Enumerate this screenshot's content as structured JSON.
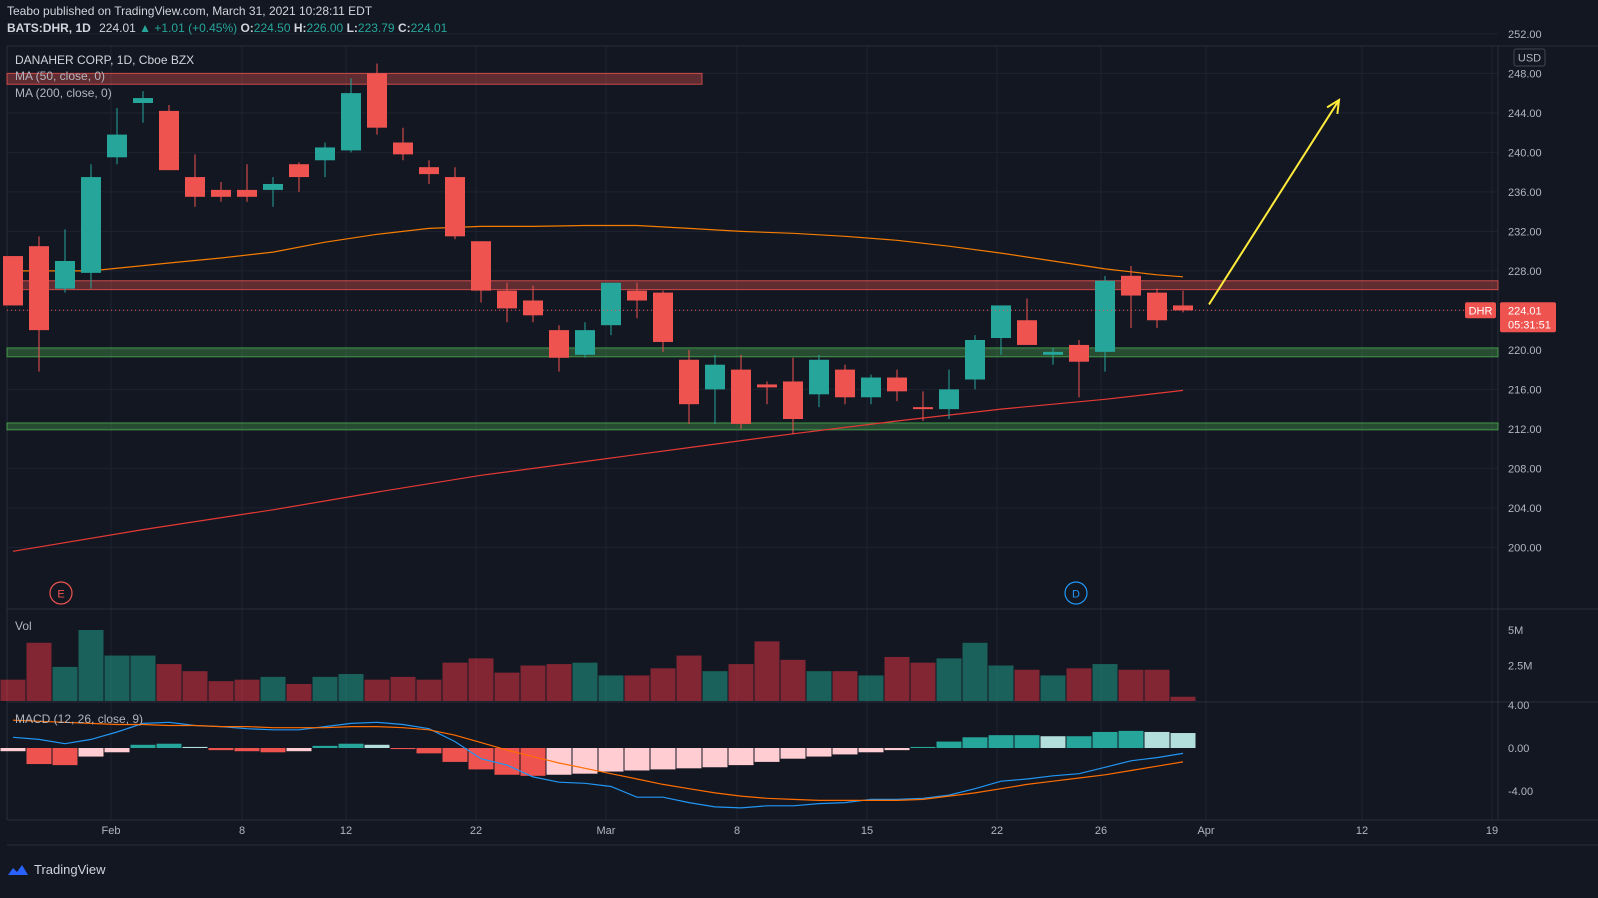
{
  "header": {
    "publisher": "Teabo published on TradingView.com, March 31, 2021 10:28:11 EDT",
    "symbol": "BATS:DHR, 1D",
    "last": "224.01",
    "change": "▲ +1.01 (+0.45%)",
    "o_label": "O:",
    "o": "224.50",
    "h_label": "H:",
    "h": "226.00",
    "l_label": "L:",
    "l": "223.79",
    "c_label": "C:",
    "c": "224.01"
  },
  "legend": {
    "title": "DANAHER CORP, 1D, Cboe BZX",
    "ma50": "MA (50, close, 0)",
    "ma200": "MA (200, close, 0)",
    "vol": "Vol",
    "macd": "MACD (12, 26, close, 9)"
  },
  "axis": {
    "currency": "USD",
    "price_ticks": [
      "252.00",
      "248.00",
      "244.00",
      "240.00",
      "236.00",
      "232.00",
      "228.00",
      "224.00",
      "220.00",
      "216.00",
      "212.00",
      "208.00",
      "204.00",
      "200.00"
    ],
    "volume_ticks": [
      "5M",
      "2.5M"
    ],
    "macd_ticks": [
      "4.00",
      "0.00",
      "-4.00"
    ],
    "date_ticks": [
      "Feb",
      "8",
      "12",
      "22",
      "Mar",
      "8",
      "15",
      "22",
      "26",
      "Apr",
      "12",
      "19"
    ]
  },
  "price_label": {
    "symbol": "DHR",
    "price": "224.01",
    "countdown": "05:31:51"
  },
  "events": {
    "earnings": "E",
    "dividend": "D"
  },
  "footer": {
    "brand": "TradingView"
  },
  "colors": {
    "up": "#26a69a",
    "down": "#ef5350",
    "ma50": "#f57c00",
    "ma200": "#e53935",
    "arrow": "#ffeb3b",
    "macd": "#2196f3",
    "signal": "#ff6d00"
  },
  "chart_data": {
    "type": "candlestick",
    "price_range": [
      198.0,
      253.0
    ],
    "candles": [
      {
        "o": 229.5,
        "h": 229.5,
        "l": 224.5,
        "c": 224.5
      },
      {
        "o": 230.5,
        "h": 231.5,
        "l": 217.8,
        "c": 222.0
      },
      {
        "o": 226.2,
        "h": 232.2,
        "l": 225.8,
        "c": 229.0
      },
      {
        "o": 227.8,
        "h": 238.8,
        "l": 226.2,
        "c": 237.5
      },
      {
        "o": 239.5,
        "h": 244.5,
        "l": 238.8,
        "c": 241.8
      },
      {
        "o": 245.0,
        "h": 246.2,
        "l": 243.0,
        "c": 245.5
      },
      {
        "o": 244.2,
        "h": 244.8,
        "l": 238.2,
        "c": 238.2
      },
      {
        "o": 237.5,
        "h": 239.8,
        "l": 234.5,
        "c": 235.5
      },
      {
        "o": 236.2,
        "h": 237.0,
        "l": 235.0,
        "c": 235.5
      },
      {
        "o": 236.2,
        "h": 238.8,
        "l": 235.0,
        "c": 235.5
      },
      {
        "o": 236.2,
        "h": 237.5,
        "l": 234.5,
        "c": 236.8
      },
      {
        "o": 238.8,
        "h": 239.0,
        "l": 236.0,
        "c": 237.5
      },
      {
        "o": 239.2,
        "h": 241.0,
        "l": 237.5,
        "c": 240.5
      },
      {
        "o": 240.2,
        "h": 247.5,
        "l": 240.0,
        "c": 246.0
      },
      {
        "o": 248.0,
        "h": 249.0,
        "l": 241.8,
        "c": 242.5
      },
      {
        "o": 241.0,
        "h": 242.5,
        "l": 239.2,
        "c": 239.8
      },
      {
        "o": 238.5,
        "h": 239.2,
        "l": 236.8,
        "c": 237.8
      },
      {
        "o": 237.5,
        "h": 238.5,
        "l": 231.2,
        "c": 231.5
      },
      {
        "o": 231.0,
        "h": 231.0,
        "l": 224.8,
        "c": 226.0
      },
      {
        "o": 226.0,
        "h": 226.8,
        "l": 222.8,
        "c": 224.2
      },
      {
        "o": 225.0,
        "h": 226.5,
        "l": 222.8,
        "c": 223.5
      },
      {
        "o": 222.0,
        "h": 222.5,
        "l": 217.8,
        "c": 219.2
      },
      {
        "o": 219.5,
        "h": 222.8,
        "l": 219.2,
        "c": 222.0
      },
      {
        "o": 222.5,
        "h": 226.8,
        "l": 221.5,
        "c": 226.8
      },
      {
        "o": 226.0,
        "h": 226.8,
        "l": 223.2,
        "c": 225.0
      },
      {
        "o": 225.8,
        "h": 226.0,
        "l": 219.8,
        "c": 220.8
      },
      {
        "o": 219.0,
        "h": 220.0,
        "l": 212.5,
        "c": 214.5
      },
      {
        "o": 216.0,
        "h": 219.5,
        "l": 212.5,
        "c": 218.5
      },
      {
        "o": 218.0,
        "h": 219.5,
        "l": 212.0,
        "c": 212.5
      },
      {
        "o": 216.5,
        "h": 216.8,
        "l": 214.5,
        "c": 216.2
      },
      {
        "o": 216.8,
        "h": 219.2,
        "l": 211.5,
        "c": 213.0
      },
      {
        "o": 215.5,
        "h": 219.5,
        "l": 214.2,
        "c": 219.0
      },
      {
        "o": 218.0,
        "h": 218.5,
        "l": 214.5,
        "c": 215.2
      },
      {
        "o": 215.2,
        "h": 217.5,
        "l": 214.5,
        "c": 217.2
      },
      {
        "o": 217.2,
        "h": 218.0,
        "l": 214.8,
        "c": 215.8
      },
      {
        "o": 214.2,
        "h": 215.8,
        "l": 212.8,
        "c": 214.0
      },
      {
        "o": 214.0,
        "h": 218.0,
        "l": 213.0,
        "c": 216.0
      },
      {
        "o": 217.0,
        "h": 221.5,
        "l": 216.0,
        "c": 221.0
      },
      {
        "o": 221.2,
        "h": 224.5,
        "l": 219.5,
        "c": 224.5
      },
      {
        "o": 223.0,
        "h": 225.2,
        "l": 220.5,
        "c": 220.5
      },
      {
        "o": 219.5,
        "h": 220.2,
        "l": 218.5,
        "c": 219.8
      },
      {
        "o": 220.5,
        "h": 221.0,
        "l": 215.2,
        "c": 218.8
      },
      {
        "o": 219.8,
        "h": 227.5,
        "l": 217.8,
        "c": 227.0
      },
      {
        "o": 227.5,
        "h": 228.5,
        "l": 222.2,
        "c": 225.5
      },
      {
        "o": 225.8,
        "h": 226.2,
        "l": 222.2,
        "c": 223.0
      },
      {
        "o": 224.5,
        "h": 226.0,
        "l": 223.8,
        "c": 224.0
      }
    ],
    "ma50": [
      [
        0,
        228.0
      ],
      [
        3,
        228.0
      ],
      [
        6,
        228.8
      ],
      [
        8,
        229.3
      ],
      [
        10,
        229.9
      ],
      [
        12,
        230.9
      ],
      [
        14,
        231.7
      ],
      [
        16,
        232.3
      ],
      [
        18,
        232.5
      ],
      [
        20,
        232.5
      ],
      [
        22,
        232.6
      ],
      [
        24,
        232.6
      ],
      [
        26,
        232.3
      ],
      [
        28,
        232.0
      ],
      [
        30,
        231.8
      ],
      [
        32,
        231.5
      ],
      [
        34,
        231.1
      ],
      [
        36,
        230.5
      ],
      [
        38,
        229.8
      ],
      [
        40,
        229.0
      ],
      [
        42,
        228.2
      ],
      [
        44,
        227.6
      ],
      [
        45,
        227.4
      ]
    ],
    "ma200": [
      [
        0,
        199.6
      ],
      [
        5,
        201.8
      ],
      [
        10,
        203.8
      ],
      [
        14,
        205.6
      ],
      [
        18,
        207.3
      ],
      [
        22,
        208.7
      ],
      [
        26,
        210.1
      ],
      [
        30,
        211.5
      ],
      [
        34,
        212.8
      ],
      [
        38,
        214.0
      ],
      [
        42,
        215.0
      ],
      [
        45,
        215.9
      ]
    ],
    "volume_range": [
      0,
      5600000
    ],
    "volume": [
      1500000,
      4100000,
      2400000,
      5000000,
      3200000,
      3200000,
      2600000,
      2100000,
      1400000,
      1500000,
      1700000,
      1200000,
      1700000,
      1900000,
      1500000,
      1700000,
      1500000,
      2700000,
      3000000,
      2000000,
      2500000,
      2600000,
      2700000,
      1800000,
      1800000,
      2300000,
      3200000,
      2100000,
      2600000,
      4200000,
      2900000,
      2100000,
      2100000,
      1800000,
      3100000,
      2700000,
      3000000,
      4100000,
      2500000,
      2200000,
      1800000,
      2300000,
      2600000,
      2200000,
      2200000,
      300000
    ],
    "macd_range": [
      -6.0,
      4.0
    ],
    "macd_hist": [
      -0.3,
      -1.5,
      -1.6,
      -0.8,
      -0.4,
      0.3,
      0.4,
      0.1,
      -0.2,
      -0.3,
      -0.4,
      -0.3,
      0.2,
      0.4,
      0.3,
      -0.1,
      -0.5,
      -1.3,
      -2.0,
      -2.5,
      -2.6,
      -2.5,
      -2.4,
      -2.2,
      -2.1,
      -2.0,
      -1.9,
      -1.8,
      -1.6,
      -1.3,
      -1.0,
      -0.8,
      -0.6,
      -0.4,
      -0.2,
      0.1,
      0.6,
      1.0,
      1.2,
      1.2,
      1.1,
      1.1,
      1.5,
      1.6,
      1.5,
      1.4
    ],
    "macd_line": [
      1.0,
      0.8,
      0.4,
      0.8,
      1.5,
      2.3,
      2.4,
      2.1,
      2.0,
      1.8,
      1.7,
      1.7,
      2.0,
      2.3,
      2.4,
      2.2,
      1.8,
      0.6,
      -1.0,
      -1.6,
      -2.7,
      -3.2,
      -3.3,
      -3.6,
      -4.6,
      -4.6,
      -5.1,
      -5.5,
      -5.6,
      -5.4,
      -5.4,
      -5.2,
      -5.1,
      -4.8,
      -4.8,
      -4.7,
      -4.4,
      -3.8,
      -3.1,
      -2.9,
      -2.6,
      -2.4,
      -1.8,
      -1.2,
      -0.9,
      -0.5
    ],
    "signal_line": [
      2.6,
      2.5,
      2.4,
      2.3,
      2.2,
      2.2,
      2.1,
      2.1,
      2.0,
      2.0,
      1.9,
      1.9,
      1.9,
      2.0,
      2.0,
      1.9,
      1.7,
      1.2,
      0.5,
      -0.2,
      -0.8,
      -1.4,
      -1.9,
      -2.4,
      -2.9,
      -3.4,
      -3.8,
      -4.2,
      -4.5,
      -4.7,
      -4.8,
      -4.9,
      -4.9,
      -4.9,
      -4.9,
      -4.8,
      -4.5,
      -4.2,
      -3.8,
      -3.4,
      -3.1,
      -2.8,
      -2.5,
      -2.1,
      -1.7,
      -1.3
    ],
    "zones": [
      {
        "low": 246.9,
        "high": 248.0,
        "color": "#ef5350",
        "x_end_bar": 26.5
      },
      {
        "low": 226.1,
        "high": 227.0,
        "color": "#ef5350"
      },
      {
        "low": 219.3,
        "high": 220.2,
        "color": "#4caf50"
      },
      {
        "low": 211.9,
        "high": 212.6,
        "color": "#4caf50"
      }
    ],
    "last_price": 224.01,
    "projection_arrow": {
      "from_bar": 46.0,
      "from_price": 224.6,
      "to_bar": 51.0,
      "to_price": 245.3
    }
  }
}
